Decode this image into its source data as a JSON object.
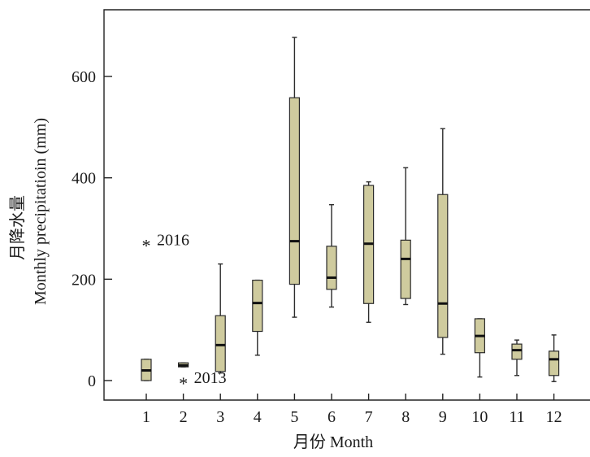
{
  "chart_data": {
    "type": "box",
    "xlabel": "月份 Month",
    "ylabel_line1": "月降水量",
    "ylabel_line2": "Monthly precipitatioin (mm)",
    "ylim": [
      -40,
      735
    ],
    "yticks": [
      0,
      200,
      400,
      600
    ],
    "categories": [
      "1",
      "2",
      "3",
      "4",
      "5",
      "6",
      "7",
      "8",
      "9",
      "10",
      "11",
      "12"
    ],
    "box_color": "#cfcb9e",
    "boxes": [
      {
        "month": "1",
        "min": 0,
        "q1": 0,
        "median": 20,
        "q3": 42,
        "max": 42
      },
      {
        "month": "2",
        "min": 27,
        "q1": 27,
        "median": 30,
        "q3": 35,
        "max": 35
      },
      {
        "month": "3",
        "min": 15,
        "q1": 18,
        "median": 70,
        "q3": 128,
        "max": 230
      },
      {
        "month": "4",
        "min": 50,
        "q1": 97,
        "median": 153,
        "q3": 198,
        "max": 198
      },
      {
        "month": "5",
        "min": 125,
        "q1": 190,
        "median": 275,
        "q3": 558,
        "max": 677
      },
      {
        "month": "6",
        "min": 145,
        "q1": 180,
        "median": 203,
        "q3": 265,
        "max": 347
      },
      {
        "month": "7",
        "min": 115,
        "q1": 152,
        "median": 270,
        "q3": 385,
        "max": 392
      },
      {
        "month": "8",
        "min": 150,
        "q1": 162,
        "median": 240,
        "q3": 277,
        "max": 420
      },
      {
        "month": "9",
        "min": 52,
        "q1": 85,
        "median": 152,
        "q3": 367,
        "max": 497
      },
      {
        "month": "10",
        "min": 7,
        "q1": 55,
        "median": 88,
        "q3": 122,
        "max": 122
      },
      {
        "month": "11",
        "min": 10,
        "q1": 42,
        "median": 60,
        "q3": 72,
        "max": 80
      },
      {
        "month": "12",
        "min": -2,
        "q1": 10,
        "median": 42,
        "q3": 58,
        "max": 90
      }
    ],
    "outliers": [
      {
        "month": "1",
        "value": 270,
        "label": "2016"
      },
      {
        "month": "2",
        "value": -2,
        "label": "2013"
      }
    ]
  }
}
